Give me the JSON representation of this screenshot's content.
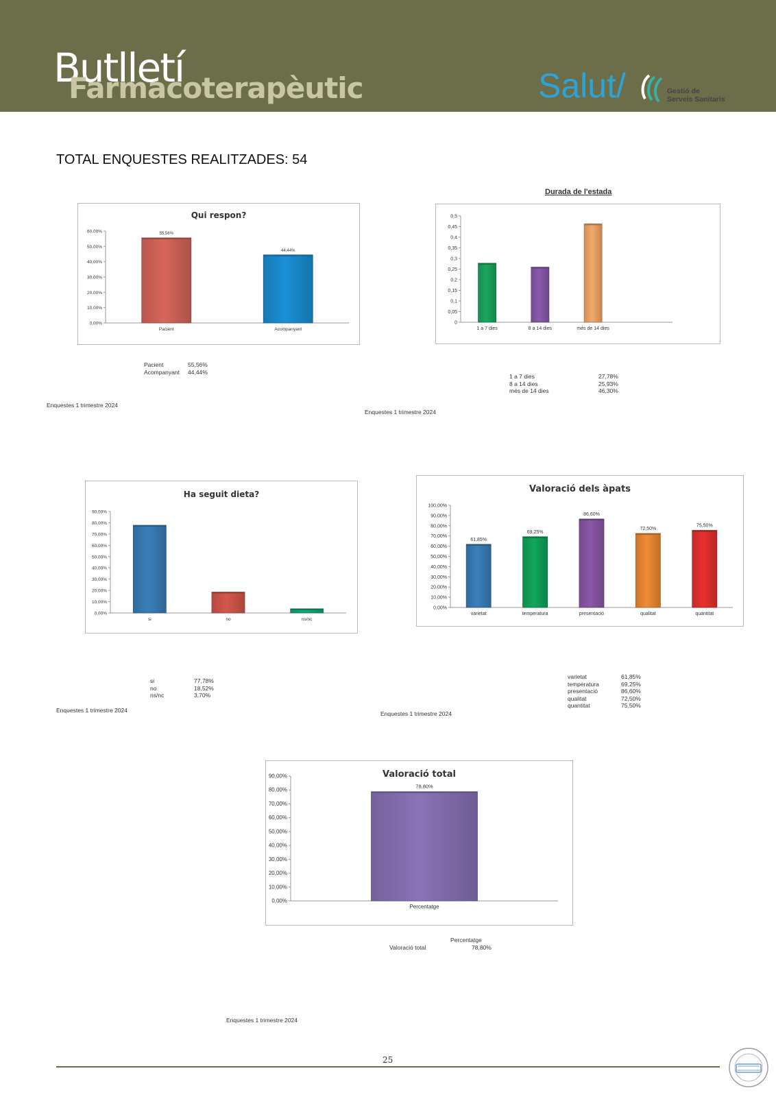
{
  "header": {
    "title_line1": "Butlletí",
    "title_line2": "Farmacoterapèutic",
    "logo_main": "Salut/",
    "logo_sub1": "Gestió de",
    "logo_sub2": "Serveis Sanitaris"
  },
  "total_label": "TOTAL ENQUESTES REALITZADES: 54",
  "page_number": "25",
  "colors": {
    "header": "#6b6e49",
    "brand_blue": "#2ea3d8"
  },
  "chart_data": [
    {
      "id": "qui",
      "type": "bar",
      "title": "Qui respon?",
      "categories": [
        "Pacient",
        "Acompanyant"
      ],
      "values": [
        55.56,
        44.44
      ],
      "value_labels": [
        "55,56%",
        "44,44%"
      ],
      "colors": [
        "#d7665b",
        "#1a90d6"
      ],
      "ylim": [
        0,
        60
      ],
      "yticks": [
        0,
        10,
        20,
        30,
        40,
        50,
        60
      ],
      "ytick_labels": [
        "0,00%",
        "10,00%",
        "20,00%",
        "30,00%",
        "40,00%",
        "50,00%",
        "60,00%"
      ],
      "table": [
        [
          "Pacient",
          "55,56%"
        ],
        [
          "Acompanyant",
          "44,44%"
        ]
      ],
      "footnote": "Enquestes  1 trimestre 2024"
    },
    {
      "id": "dur",
      "type": "bar",
      "title": "Durada de l'estada",
      "categories": [
        "1 a 7 dies",
        "8 a 14 dies",
        "més de 14 dies"
      ],
      "values": [
        0.2778,
        0.2593,
        0.463
      ],
      "colors": [
        "#1aa75e",
        "#8a5aab",
        "#f4a96a"
      ],
      "ylim": [
        0,
        0.5
      ],
      "yticks": [
        0,
        0.05,
        0.1,
        0.15,
        0.2,
        0.25,
        0.3,
        0.35,
        0.4,
        0.45,
        0.5
      ],
      "ytick_labels": [
        "0",
        "0,05",
        "0,1",
        "0,15",
        "0,2",
        "0,25",
        "0,3",
        "0,35",
        "0,4",
        "0,45",
        "0,5"
      ],
      "table": [
        [
          "1 a 7 dies",
          "27,78%"
        ],
        [
          "8 a 14 dies",
          "25,93%"
        ],
        [
          "més de 14 dies",
          "46,30%"
        ]
      ],
      "footnote": "Enquestes  1 trimestre 2024"
    },
    {
      "id": "dieta",
      "type": "bar",
      "title": "Ha seguit dieta?",
      "categories": [
        "si",
        "no",
        "ns/nc"
      ],
      "values": [
        77.78,
        18.52,
        3.7
      ],
      "colors": [
        "#3a7fb9",
        "#d4574c",
        "#16a77a"
      ],
      "ylim": [
        0,
        90
      ],
      "yticks": [
        0,
        10,
        20,
        30,
        40,
        50,
        60,
        70,
        80,
        90
      ],
      "ytick_labels": [
        "0,00%",
        "10,00%",
        "20,00%",
        "30,00%",
        "40,00%",
        "50,00%",
        "60,00%",
        "70,00%",
        "80,00%",
        "90,00%"
      ],
      "table": [
        [
          "si",
          "77,78%"
        ],
        [
          "no",
          "18,52%"
        ],
        [
          "ns/nc",
          "3,70%"
        ]
      ],
      "footnote": "Enquestes  1 trimestre 2024"
    },
    {
      "id": "apats",
      "type": "bar",
      "title": "Valoració dels àpats",
      "categories": [
        "varietat",
        "temperatura",
        "presentació",
        "qualitat",
        "quantitat"
      ],
      "values": [
        61.85,
        69.25,
        86.6,
        72.5,
        75.5
      ],
      "value_labels": [
        "61,85%",
        "69,25%",
        "86,60%",
        "72,50%",
        "75,50%"
      ],
      "colors": [
        "#3a7fb9",
        "#10a65c",
        "#8c57a8",
        "#f08b35",
        "#e6312f"
      ],
      "ylim": [
        0,
        100
      ],
      "yticks": [
        0,
        10,
        20,
        30,
        40,
        50,
        60,
        70,
        80,
        90,
        100
      ],
      "ytick_labels": [
        "0,00%",
        "10,00%",
        "20,00%",
        "30,00%",
        "40,00%",
        "50,00%",
        "60,00%",
        "70,00%",
        "80,00%",
        "90,00%",
        "100,00%"
      ],
      "table": [
        [
          "varietat",
          "61,85%"
        ],
        [
          "temperatura",
          "69,25%"
        ],
        [
          "presentació",
          "86,60%"
        ],
        [
          "qualitat",
          "72,50%"
        ],
        [
          "quantitat",
          "75,50%"
        ]
      ],
      "footnote": "Enquestes  1 trimestre 2024"
    },
    {
      "id": "total",
      "type": "bar",
      "title": "Valoració total",
      "categories": [
        "Percentatge"
      ],
      "values": [
        78.8
      ],
      "value_labels": [
        "78,80%"
      ],
      "colors": [
        "#8a73b8"
      ],
      "ylim": [
        0,
        90
      ],
      "yticks": [
        0,
        10,
        20,
        30,
        40,
        50,
        60,
        70,
        80,
        90
      ],
      "ytick_labels": [
        "0,00%",
        "10,00%",
        "20,00%",
        "30,00%",
        "40,00%",
        "50,00%",
        "60,00%",
        "70,00%",
        "80,00%",
        "90,00%"
      ],
      "table_header": "Percentatge",
      "table": [
        [
          "Valoració total",
          "78,80%"
        ]
      ],
      "footnote": "Enquestes 1  trimestre 2024"
    }
  ]
}
